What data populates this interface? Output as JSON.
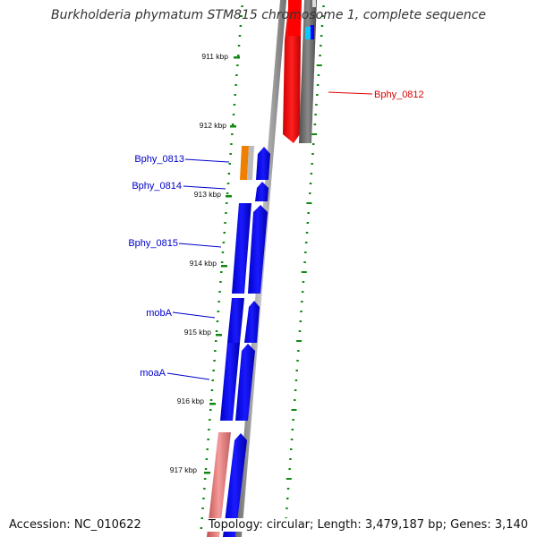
{
  "title": "Burkholderia phymatum STM815 chromosome 1, complete sequence",
  "accession_text": "Accession: NC_010622",
  "summary_text": "Topology: circular; Length: 3,479,187 bp; Genes: 3,140",
  "colors": {
    "forward_gene": "#0000ff",
    "reverse_gene": "#ff0000",
    "reverse_gene_light": "#f08080",
    "gc_skew_dots": "#118811",
    "backbone": "#888888",
    "orange_feature": "#ee7f00",
    "label_blue": "#0000cc",
    "label_red": "#dd0000"
  },
  "tick_labels": [
    "911 kbp",
    "912 kbp",
    "913 kbp",
    "914 kbp",
    "915 kbp",
    "916 kbp",
    "917 kbp"
  ],
  "gene_labels": [
    {
      "text": "Bphy_0812",
      "color": "red"
    },
    {
      "text": "Bphy_0813",
      "color": "blue"
    },
    {
      "text": "Bphy_0814",
      "color": "blue"
    },
    {
      "text": "Bphy_0815",
      "color": "blue"
    },
    {
      "text": "mobA",
      "color": "blue"
    },
    {
      "text": "moaA",
      "color": "blue"
    }
  ]
}
